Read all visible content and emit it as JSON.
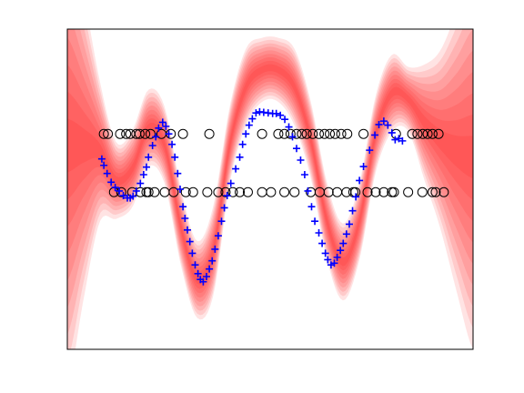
{
  "chart_data": {
    "type": "scatter",
    "title": "",
    "xlabel": "",
    "ylabel": "",
    "axes_visible_ticks": false,
    "grid": false,
    "legend": "none",
    "xlim": [
      0,
      1
    ],
    "ylim": [
      -3.2,
      2.3
    ],
    "band": {
      "name": "",
      "color": "#ff0000",
      "levels": 9,
      "x": [
        0,
        0.04,
        0.08,
        0.12,
        0.16,
        0.2,
        0.24,
        0.28,
        0.32,
        0.36,
        0.4,
        0.44,
        0.48,
        0.52,
        0.56,
        0.6,
        0.64,
        0.68,
        0.72,
        0.76,
        0.8,
        0.84,
        0.88,
        0.92,
        0.96,
        1
      ],
      "mean": [
        0.3,
        0.3,
        0.2,
        -0.3,
        -0.1,
        0.6,
        0.3,
        -1.1,
        -2.0,
        -1.5,
        0.3,
        1.3,
        1.6,
        1.6,
        1.3,
        0.4,
        -1.0,
        -1.7,
        -1.0,
        0.5,
        1.2,
        1.1,
        0.7,
        0.4,
        0.2,
        0.1
      ],
      "sd": [
        1.9,
        1.2,
        0.55,
        0.3,
        0.3,
        0.3,
        0.3,
        0.3,
        0.3,
        0.35,
        0.3,
        0.3,
        0.25,
        0.25,
        0.3,
        0.3,
        0.3,
        0.3,
        0.3,
        0.3,
        0.3,
        0.25,
        0.45,
        0.7,
        1.1,
        1.5
      ]
    },
    "series": [
      {
        "marker": "plus",
        "color": "#0000ff",
        "points": [
          [
            0.085,
            0.07
          ],
          [
            0.09,
            -0.04
          ],
          [
            0.098,
            -0.18
          ],
          [
            0.108,
            -0.33
          ],
          [
            0.118,
            -0.42
          ],
          [
            0.128,
            -0.48
          ],
          [
            0.138,
            -0.56
          ],
          [
            0.148,
            -0.6
          ],
          [
            0.155,
            -0.6
          ],
          [
            0.162,
            -0.57
          ],
          [
            0.17,
            -0.48
          ],
          [
            0.18,
            -0.35
          ],
          [
            0.188,
            -0.2
          ],
          [
            0.195,
            -0.07
          ],
          [
            0.2,
            0.1
          ],
          [
            0.21,
            0.3
          ],
          [
            0.218,
            0.45
          ],
          [
            0.225,
            0.6
          ],
          [
            0.235,
            0.7
          ],
          [
            0.243,
            0.63
          ],
          [
            0.25,
            0.5
          ],
          [
            0.258,
            0.32
          ],
          [
            0.265,
            0.1
          ],
          [
            0.272,
            -0.18
          ],
          [
            0.278,
            -0.45
          ],
          [
            0.285,
            -0.75
          ],
          [
            0.29,
            -0.95
          ],
          [
            0.296,
            -1.15
          ],
          [
            0.302,
            -1.35
          ],
          [
            0.308,
            -1.55
          ],
          [
            0.315,
            -1.75
          ],
          [
            0.322,
            -1.9
          ],
          [
            0.328,
            -2.0
          ],
          [
            0.335,
            -2.04
          ],
          [
            0.343,
            -1.95
          ],
          [
            0.35,
            -1.82
          ],
          [
            0.357,
            -1.68
          ],
          [
            0.364,
            -1.48
          ],
          [
            0.372,
            -1.25
          ],
          [
            0.38,
            -1.0
          ],
          [
            0.387,
            -0.77
          ],
          [
            0.394,
            -0.56
          ],
          [
            0.403,
            -0.35
          ],
          [
            0.415,
            -0.1
          ],
          [
            0.425,
            0.1
          ],
          [
            0.432,
            0.32
          ],
          [
            0.44,
            0.5
          ],
          [
            0.448,
            0.65
          ],
          [
            0.456,
            0.76
          ],
          [
            0.465,
            0.86
          ],
          [
            0.474,
            0.88
          ],
          [
            0.484,
            0.87
          ],
          [
            0.495,
            0.86
          ],
          [
            0.506,
            0.85
          ],
          [
            0.515,
            0.85
          ],
          [
            0.525,
            0.82
          ],
          [
            0.536,
            0.75
          ],
          [
            0.546,
            0.62
          ],
          [
            0.555,
            0.45
          ],
          [
            0.565,
            0.25
          ],
          [
            0.575,
            0.05
          ],
          [
            0.585,
            -0.2
          ],
          [
            0.593,
            -0.48
          ],
          [
            0.602,
            -0.75
          ],
          [
            0.61,
            -1.0
          ],
          [
            0.62,
            -1.2
          ],
          [
            0.628,
            -1.38
          ],
          [
            0.636,
            -1.55
          ],
          [
            0.642,
            -1.66
          ],
          [
            0.65,
            -1.75
          ],
          [
            0.658,
            -1.72
          ],
          [
            0.665,
            -1.62
          ],
          [
            0.673,
            -1.5
          ],
          [
            0.68,
            -1.38
          ],
          [
            0.688,
            -1.22
          ],
          [
            0.695,
            -1.05
          ],
          [
            0.703,
            -0.82
          ],
          [
            0.711,
            -0.58
          ],
          [
            0.72,
            -0.3
          ],
          [
            0.73,
            -0.06
          ],
          [
            0.745,
            0.22
          ],
          [
            0.758,
            0.48
          ],
          [
            0.768,
            0.66
          ],
          [
            0.78,
            0.72
          ],
          [
            0.79,
            0.65
          ],
          [
            0.8,
            0.52
          ],
          [
            0.808,
            0.4
          ],
          [
            0.817,
            0.42
          ],
          [
            0.826,
            0.38
          ]
        ]
      },
      {
        "marker": "circle",
        "color": "#000000",
        "points": [
          [
            0.09,
            0.5
          ],
          [
            0.1,
            0.5
          ],
          [
            0.13,
            0.5
          ],
          [
            0.145,
            0.5
          ],
          [
            0.155,
            0.5
          ],
          [
            0.17,
            0.5
          ],
          [
            0.178,
            0.5
          ],
          [
            0.192,
            0.5
          ],
          [
            0.205,
            0.5
          ],
          [
            0.232,
            0.5
          ],
          [
            0.255,
            0.5
          ],
          [
            0.285,
            0.5
          ],
          [
            0.35,
            0.5
          ],
          [
            0.48,
            0.5
          ],
          [
            0.52,
            0.5
          ],
          [
            0.535,
            0.5
          ],
          [
            0.55,
            0.5
          ],
          [
            0.565,
            0.5
          ],
          [
            0.578,
            0.5
          ],
          [
            0.59,
            0.5
          ],
          [
            0.605,
            0.5
          ],
          [
            0.62,
            0.5
          ],
          [
            0.634,
            0.5
          ],
          [
            0.647,
            0.5
          ],
          [
            0.66,
            0.5
          ],
          [
            0.675,
            0.5
          ],
          [
            0.69,
            0.5
          ],
          [
            0.73,
            0.5
          ],
          [
            0.81,
            0.5
          ],
          [
            0.85,
            0.5
          ],
          [
            0.863,
            0.5
          ],
          [
            0.876,
            0.5
          ],
          [
            0.888,
            0.5
          ],
          [
            0.9,
            0.5
          ],
          [
            0.915,
            0.5
          ],
          [
            0.115,
            -0.5
          ],
          [
            0.133,
            -0.5
          ],
          [
            0.16,
            -0.5
          ],
          [
            0.18,
            -0.5
          ],
          [
            0.195,
            -0.5
          ],
          [
            0.2,
            -0.5
          ],
          [
            0.215,
            -0.5
          ],
          [
            0.24,
            -0.5
          ],
          [
            0.262,
            -0.5
          ],
          [
            0.292,
            -0.5
          ],
          [
            0.31,
            -0.5
          ],
          [
            0.345,
            -0.5
          ],
          [
            0.372,
            -0.5
          ],
          [
            0.39,
            -0.5
          ],
          [
            0.408,
            -0.5
          ],
          [
            0.425,
            -0.5
          ],
          [
            0.445,
            -0.5
          ],
          [
            0.48,
            -0.5
          ],
          [
            0.502,
            -0.5
          ],
          [
            0.535,
            -0.5
          ],
          [
            0.56,
            -0.5
          ],
          [
            0.6,
            -0.5
          ],
          [
            0.622,
            -0.5
          ],
          [
            0.644,
            -0.5
          ],
          [
            0.665,
            -0.5
          ],
          [
            0.688,
            -0.5
          ],
          [
            0.705,
            -0.5
          ],
          [
            0.71,
            -0.5
          ],
          [
            0.74,
            -0.5
          ],
          [
            0.76,
            -0.5
          ],
          [
            0.78,
            -0.5
          ],
          [
            0.8,
            -0.5
          ],
          [
            0.805,
            -0.5
          ],
          [
            0.84,
            -0.5
          ],
          [
            0.875,
            -0.5
          ],
          [
            0.9,
            -0.5
          ],
          [
            0.908,
            -0.5
          ],
          [
            0.928,
            -0.5
          ]
        ]
      }
    ]
  }
}
